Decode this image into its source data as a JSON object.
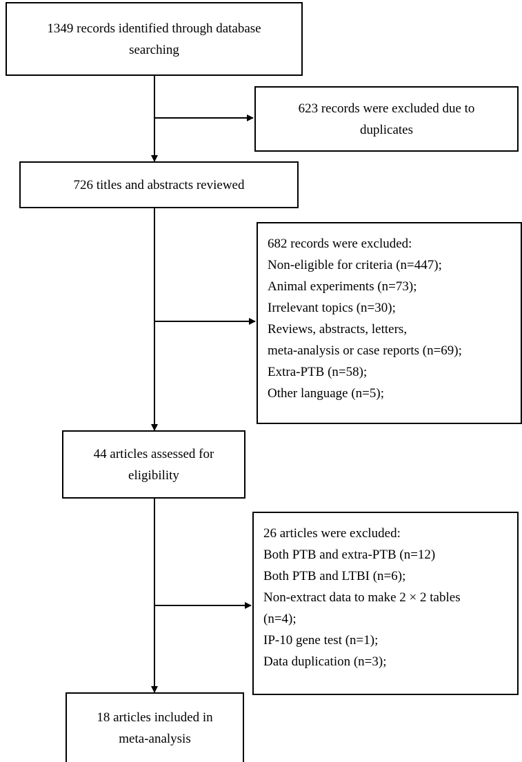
{
  "flow": {
    "identified": [
      "1349 records identified through database",
      "searching"
    ],
    "duplicates_excluded": [
      "623 records were excluded due to",
      "duplicates"
    ],
    "screened": [
      "726 titles and abstracts reviewed"
    ],
    "screen_excluded": [
      "682 records were excluded:",
      "Non-eligible for criteria (n=447);",
      "Animal experiments (n=73);",
      "Irrelevant topics (n=30);",
      "Reviews, abstracts, letters,",
      "meta-analysis or case reports (n=69);",
      "Extra-PTB (n=58);",
      "Other language (n=5);"
    ],
    "eligibility": [
      "44 articles assessed for",
      "eligibility"
    ],
    "eligibility_excluded": [
      "26 articles were excluded:",
      "Both PTB and extra-PTB (n=12)",
      "Both PTB and LTBI (n=6);",
      "Non-extract data to make 2 × 2 tables",
      "(n=4);",
      "IP-10 gene test (n=1);",
      "Data duplication (n=3);"
    ],
    "included": [
      "18 articles included in",
      "meta-analysis"
    ]
  }
}
